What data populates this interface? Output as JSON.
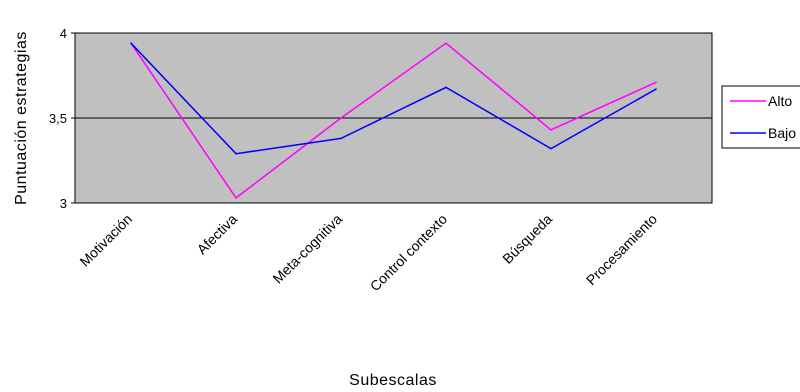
{
  "chart_data": {
    "type": "line",
    "categories": [
      "Motivación",
      "Afectiva",
      "Meta-cognitiva",
      "Control contexto",
      "Búsqueda",
      "Procesamiento"
    ],
    "series": [
      {
        "name": "Alto",
        "color": "#ff00ff",
        "values": [
          3.94,
          3.03,
          3.5,
          3.94,
          3.43,
          3.71
        ]
      },
      {
        "name": "Bajo",
        "color": "#0000ff",
        "values": [
          3.94,
          3.29,
          3.38,
          3.68,
          3.32,
          3.67
        ]
      }
    ],
    "yticks": [
      "3",
      "3,5",
      "4"
    ],
    "ytick_values": [
      3,
      3.5,
      4
    ],
    "ylim": [
      3,
      4
    ],
    "xlabel": "Subescalas",
    "ylabel": "Puntuación estrategias",
    "plot_background": "#c0c0c0",
    "gridlines": "horizontal at 3,5",
    "legend_position": "right"
  }
}
